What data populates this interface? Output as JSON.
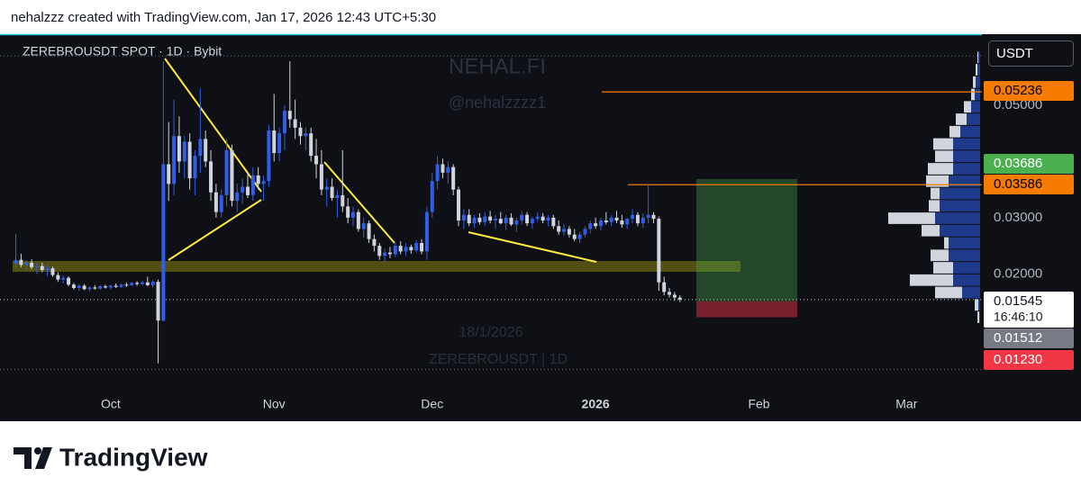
{
  "header": "nehalzzz created with TradingView.com, Jan 17, 2026 12:43 UTC+5:30",
  "footer": "TradingView",
  "chart_data": {
    "type": "candlestick",
    "title": "ZEREBROUSDT SPOT · 1D · Bybit",
    "currency": "USDT",
    "watermark": [
      "NEHAL.FI",
      "@nehalzzzz1"
    ],
    "hover_labels": [
      "18/1/2026",
      "ZEREBROUSDT | 1D"
    ],
    "up_color": "#2f5fe8",
    "down_color": "#d1d4dc",
    "candles": [
      [
        0.0218,
        0.0271,
        0.021,
        0.0225
      ],
      [
        0.0225,
        0.0236,
        0.0212,
        0.0216
      ],
      [
        0.0216,
        0.0224,
        0.0205,
        0.022
      ],
      [
        0.022,
        0.0226,
        0.0208,
        0.0212
      ],
      [
        0.0212,
        0.0219,
        0.02,
        0.0214
      ],
      [
        0.0214,
        0.022,
        0.0203,
        0.0207
      ],
      [
        0.0207,
        0.0215,
        0.0196,
        0.021
      ],
      [
        0.021,
        0.0213,
        0.0195,
        0.0198
      ],
      [
        0.0198,
        0.0203,
        0.0186,
        0.019
      ],
      [
        0.019,
        0.0197,
        0.0183,
        0.0193
      ],
      [
        0.0193,
        0.0196,
        0.0178,
        0.0181
      ],
      [
        0.0181,
        0.0184,
        0.0172,
        0.0175
      ],
      [
        0.0175,
        0.0182,
        0.017,
        0.0179
      ],
      [
        0.0179,
        0.0182,
        0.0171,
        0.0173
      ],
      [
        0.0173,
        0.0178,
        0.0169,
        0.0176
      ],
      [
        0.0176,
        0.018,
        0.0172,
        0.0174
      ],
      [
        0.0174,
        0.018,
        0.0172,
        0.0178
      ],
      [
        0.0178,
        0.0181,
        0.0174,
        0.0176
      ],
      [
        0.0176,
        0.0181,
        0.0173,
        0.0179
      ],
      [
        0.0179,
        0.0183,
        0.0175,
        0.0177
      ],
      [
        0.0177,
        0.0183,
        0.0175,
        0.0181
      ],
      [
        0.0181,
        0.0185,
        0.0177,
        0.018
      ],
      [
        0.018,
        0.0186,
        0.0178,
        0.0184
      ],
      [
        0.0184,
        0.0187,
        0.0179,
        0.0182
      ],
      [
        0.0182,
        0.0188,
        0.018,
        0.0185
      ],
      [
        0.0185,
        0.0195,
        0.0178,
        0.018
      ],
      [
        0.018,
        0.0189,
        0.0176,
        0.0186
      ],
      [
        0.0186,
        0.019,
        0.0041,
        0.0117
      ],
      [
        0.0117,
        0.0578,
        0.0115,
        0.0395
      ],
      [
        0.0395,
        0.047,
        0.033,
        0.036
      ],
      [
        0.036,
        0.051,
        0.034,
        0.0445
      ],
      [
        0.0445,
        0.048,
        0.038,
        0.04
      ],
      [
        0.04,
        0.0445,
        0.037,
        0.0435
      ],
      [
        0.0435,
        0.045,
        0.035,
        0.037
      ],
      [
        0.037,
        0.042,
        0.034,
        0.041
      ],
      [
        0.041,
        0.053,
        0.038,
        0.044
      ],
      [
        0.044,
        0.0455,
        0.039,
        0.04
      ],
      [
        0.04,
        0.042,
        0.033,
        0.0345
      ],
      [
        0.0345,
        0.036,
        0.03,
        0.031
      ],
      [
        0.031,
        0.035,
        0.03,
        0.034
      ],
      [
        0.034,
        0.044,
        0.032,
        0.042
      ],
      [
        0.042,
        0.043,
        0.032,
        0.033
      ],
      [
        0.033,
        0.036,
        0.031,
        0.0345
      ],
      [
        0.0345,
        0.037,
        0.0325,
        0.0355
      ],
      [
        0.0355,
        0.038,
        0.0335,
        0.034
      ],
      [
        0.034,
        0.039,
        0.033,
        0.0375
      ],
      [
        0.0375,
        0.039,
        0.035,
        0.036
      ],
      [
        0.036,
        0.0375,
        0.033,
        0.0365
      ],
      [
        0.0365,
        0.0465,
        0.0355,
        0.0455
      ],
      [
        0.0455,
        0.052,
        0.04,
        0.0415
      ],
      [
        0.0415,
        0.046,
        0.04,
        0.045
      ],
      [
        0.045,
        0.05,
        0.042,
        0.049
      ],
      [
        0.049,
        0.0578,
        0.046,
        0.0475
      ],
      [
        0.0475,
        0.051,
        0.044,
        0.046
      ],
      [
        0.046,
        0.047,
        0.043,
        0.0445
      ],
      [
        0.0445,
        0.046,
        0.042,
        0.045
      ],
      [
        0.045,
        0.046,
        0.04,
        0.041
      ],
      [
        0.041,
        0.044,
        0.037,
        0.0395
      ],
      [
        0.0395,
        0.042,
        0.034,
        0.035
      ],
      [
        0.035,
        0.037,
        0.032,
        0.0355
      ],
      [
        0.0355,
        0.037,
        0.033,
        0.0335
      ],
      [
        0.0335,
        0.035,
        0.03,
        0.034
      ],
      [
        0.034,
        0.042,
        0.031,
        0.032
      ],
      [
        0.032,
        0.0335,
        0.029,
        0.03
      ],
      [
        0.03,
        0.032,
        0.0285,
        0.031
      ],
      [
        0.031,
        0.0315,
        0.0275,
        0.028
      ],
      [
        0.028,
        0.03,
        0.0265,
        0.029
      ],
      [
        0.029,
        0.0295,
        0.0255,
        0.0262
      ],
      [
        0.0262,
        0.027,
        0.024,
        0.025
      ],
      [
        0.025,
        0.0255,
        0.0225,
        0.0232
      ],
      [
        0.0232,
        0.0245,
        0.022,
        0.0238
      ],
      [
        0.0238,
        0.0248,
        0.0228,
        0.0235
      ],
      [
        0.0235,
        0.0255,
        0.023,
        0.025
      ],
      [
        0.025,
        0.0258,
        0.0235,
        0.024
      ],
      [
        0.024,
        0.0255,
        0.0232,
        0.0248
      ],
      [
        0.0248,
        0.0252,
        0.0236,
        0.0242
      ],
      [
        0.0242,
        0.026,
        0.0238,
        0.0255
      ],
      [
        0.0255,
        0.0262,
        0.0235,
        0.024
      ],
      [
        0.024,
        0.032,
        0.0225,
        0.031
      ],
      [
        0.031,
        0.038,
        0.03,
        0.0365
      ],
      [
        0.0365,
        0.041,
        0.035,
        0.0395
      ],
      [
        0.0395,
        0.0405,
        0.037,
        0.038
      ],
      [
        0.038,
        0.04,
        0.036,
        0.039
      ],
      [
        0.039,
        0.0395,
        0.034,
        0.035
      ],
      [
        0.035,
        0.0355,
        0.0285,
        0.0295
      ],
      [
        0.0295,
        0.0315,
        0.028,
        0.0305
      ],
      [
        0.0305,
        0.0315,
        0.0285,
        0.029
      ],
      [
        0.029,
        0.0305,
        0.0282,
        0.03
      ],
      [
        0.03,
        0.0308,
        0.0288,
        0.0292
      ],
      [
        0.0292,
        0.031,
        0.0285,
        0.0302
      ],
      [
        0.0302,
        0.0312,
        0.029,
        0.0295
      ],
      [
        0.0295,
        0.0305,
        0.028,
        0.0298
      ],
      [
        0.0298,
        0.031,
        0.0288,
        0.029
      ],
      [
        0.029,
        0.0305,
        0.0278,
        0.03
      ],
      [
        0.03,
        0.0308,
        0.0285,
        0.0288
      ],
      [
        0.0288,
        0.03,
        0.0275,
        0.0295
      ],
      [
        0.0295,
        0.0312,
        0.0288,
        0.0305
      ],
      [
        0.0305,
        0.031,
        0.0285,
        0.029
      ],
      [
        0.029,
        0.0302,
        0.028,
        0.0298
      ],
      [
        0.0298,
        0.031,
        0.0292,
        0.0302
      ],
      [
        0.0302,
        0.0308,
        0.029,
        0.0295
      ],
      [
        0.0295,
        0.0305,
        0.0285,
        0.03
      ],
      [
        0.03,
        0.0305,
        0.028,
        0.0285
      ],
      [
        0.0285,
        0.0295,
        0.027,
        0.0275
      ],
      [
        0.0275,
        0.0288,
        0.0268,
        0.028
      ],
      [
        0.028,
        0.0285,
        0.0265,
        0.027
      ],
      [
        0.027,
        0.028,
        0.0258,
        0.0262
      ],
      [
        0.0262,
        0.0275,
        0.0255,
        0.027
      ],
      [
        0.027,
        0.0285,
        0.0265,
        0.028
      ],
      [
        0.028,
        0.0295,
        0.0272,
        0.029
      ],
      [
        0.029,
        0.03,
        0.028,
        0.0285
      ],
      [
        0.0285,
        0.03,
        0.0278,
        0.0295
      ],
      [
        0.0295,
        0.031,
        0.0288,
        0.0292
      ],
      [
        0.0292,
        0.0305,
        0.0285,
        0.03
      ],
      [
        0.03,
        0.0312,
        0.029,
        0.0295
      ],
      [
        0.0295,
        0.0305,
        0.0282,
        0.0288
      ],
      [
        0.0288,
        0.03,
        0.028,
        0.0298
      ],
      [
        0.0298,
        0.0315,
        0.029,
        0.0305
      ],
      [
        0.0305,
        0.031,
        0.0285,
        0.029
      ],
      [
        0.029,
        0.0308,
        0.0282,
        0.03
      ],
      [
        0.03,
        0.0359,
        0.029,
        0.0305
      ],
      [
        0.0305,
        0.031,
        0.029,
        0.0298
      ],
      [
        0.0298,
        0.0302,
        0.017,
        0.0185
      ],
      [
        0.0185,
        0.0195,
        0.0162,
        0.0168
      ],
      [
        0.0168,
        0.0175,
        0.0158,
        0.0163
      ],
      [
        0.0163,
        0.0168,
        0.0152,
        0.0158
      ],
      [
        0.0158,
        0.0162,
        0.015,
        0.01545
      ]
    ],
    "xlim": [
      -3,
      183.3
    ],
    "xticks": [
      {
        "value": 18,
        "label": "Oct"
      },
      {
        "value": 49,
        "label": "Nov"
      },
      {
        "value": 79,
        "label": "Dec"
      },
      {
        "value": 110,
        "label": "2026"
      },
      {
        "value": 141,
        "label": "Feb"
      },
      {
        "value": 169,
        "label": "Mar"
      }
    ],
    "ylim": [
      -0.0009,
      0.0623
    ],
    "yticks": [
      {
        "value": 0.02,
        "label": "0.02000"
      },
      {
        "value": 0.03,
        "label": "0.03000"
      },
      {
        "value": 0.05,
        "label": "0.05000"
      }
    ],
    "price_lines": [
      {
        "value": 0.05236,
        "color": "#f57c00"
      },
      {
        "value": 0.03586,
        "color": "#f57c00"
      }
    ],
    "position": {
      "target": 0.03686,
      "entry": 0.01512,
      "stop": {
        "value": 0.0123,
        "label": "0.01230"
      },
      "target_color": "#4caf50",
      "stop_color": "#f23645",
      "entry_color": "#787b86"
    },
    "last_price": 0.01545,
    "countdown": "16:46:10",
    "volume_profile": {
      "up_color": "#1e3a8a",
      "down_color": "#d1d4dc",
      "rows": [
        [
          0.0112,
          0.0134,
          1,
          2
        ],
        [
          0.0134,
          0.0156,
          2,
          4
        ],
        [
          0.0156,
          0.0178,
          20,
          30
        ],
        [
          0.0178,
          0.02,
          30,
          48
        ],
        [
          0.02,
          0.0222,
          30,
          22
        ],
        [
          0.0222,
          0.0244,
          35,
          20
        ],
        [
          0.0244,
          0.0266,
          35,
          5
        ],
        [
          0.0266,
          0.0288,
          45,
          20
        ],
        [
          0.0288,
          0.031,
          50,
          52
        ],
        [
          0.031,
          0.0332,
          45,
          12
        ],
        [
          0.0332,
          0.0354,
          45,
          10
        ],
        [
          0.0354,
          0.0376,
          35,
          25
        ],
        [
          0.0376,
          0.0398,
          30,
          28
        ],
        [
          0.0398,
          0.042,
          30,
          20
        ],
        [
          0.042,
          0.0442,
          30,
          22
        ],
        [
          0.0442,
          0.0464,
          22,
          12
        ],
        [
          0.0464,
          0.0486,
          15,
          12
        ],
        [
          0.0486,
          0.0508,
          10,
          8
        ],
        [
          0.0508,
          0.053,
          6,
          4
        ],
        [
          0.053,
          0.0552,
          5,
          3
        ],
        [
          0.0552,
          0.0574,
          3,
          2
        ],
        [
          0.0574,
          0.0596,
          2,
          1
        ]
      ]
    }
  }
}
